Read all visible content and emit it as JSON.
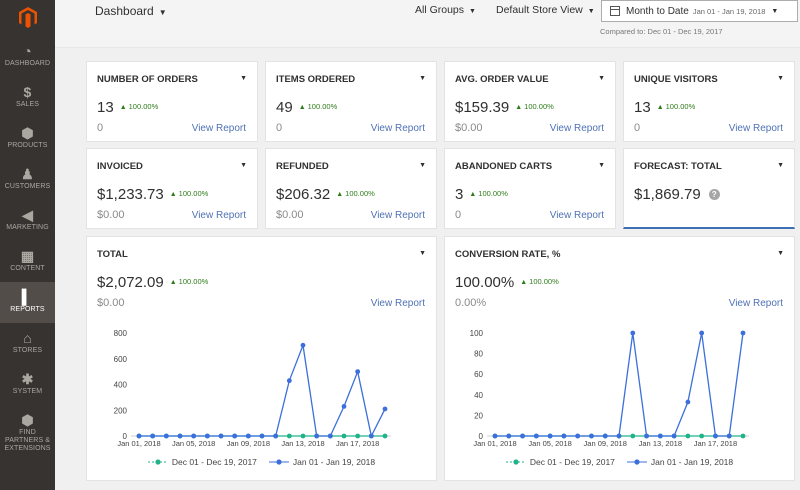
{
  "sidebar": {
    "items": [
      {
        "label": "DASHBOARD",
        "icon": "dashboard-icon",
        "glyph": "◔"
      },
      {
        "label": "SALES",
        "icon": "dollar-icon",
        "glyph": "$"
      },
      {
        "label": "PRODUCTS",
        "icon": "box-icon",
        "glyph": "⬢"
      },
      {
        "label": "CUSTOMERS",
        "icon": "person-icon",
        "glyph": "♟"
      },
      {
        "label": "MARKETING",
        "icon": "megaphone-icon",
        "glyph": "◀"
      },
      {
        "label": "CONTENT",
        "icon": "layout-icon",
        "glyph": "▦"
      },
      {
        "label": "REPORTS",
        "icon": "bar-chart-icon",
        "glyph": "▍"
      },
      {
        "label": "STORES",
        "icon": "store-icon",
        "glyph": "⌂"
      },
      {
        "label": "SYSTEM",
        "icon": "gear-icon",
        "glyph": "✱"
      },
      {
        "label": "FIND PARTNERS & EXTENSIONS",
        "icon": "cube-icon",
        "glyph": "⬢"
      }
    ]
  },
  "header": {
    "title": "Dashboard",
    "groups": "All Groups",
    "store_view": "Default Store View",
    "date_label": "Month to Date",
    "date_range": "Jan 01 - Jan 19, 2018",
    "compared": "Compared to: Dec 01 - Dec 19, 2017"
  },
  "cards": {
    "orders": {
      "title": "NUMBER OF ORDERS",
      "value": "13",
      "pct": "100.00%",
      "prev": "0",
      "link": "View Report"
    },
    "items": {
      "title": "ITEMS ORDERED",
      "value": "49",
      "pct": "100.00%",
      "prev": "0",
      "link": "View Report"
    },
    "aov": {
      "title": "AVG. ORDER VALUE",
      "value": "$159.39",
      "pct": "100.00%",
      "prev": "$0.00",
      "link": "View Report"
    },
    "visitors": {
      "title": "UNIQUE VISITORS",
      "value": "13",
      "pct": "100.00%",
      "prev": "0",
      "link": "View Report"
    },
    "invoiced": {
      "title": "INVOICED",
      "value": "$1,233.73",
      "pct": "100.00%",
      "prev": "$0.00",
      "link": "View Report"
    },
    "refunded": {
      "title": "REFUNDED",
      "value": "$206.32",
      "pct": "100.00%",
      "prev": "$0.00",
      "link": "View Report"
    },
    "abandoned": {
      "title": "ABANDONED CARTS",
      "value": "3",
      "pct": "100.00%",
      "prev": "0",
      "link": "View Report"
    },
    "forecast": {
      "title": "FORECAST: TOTAL",
      "value": "$1,869.79",
      "help": "?"
    },
    "total": {
      "title": "TOTAL",
      "value": "$2,072.09",
      "pct": "100.00%",
      "prev": "$0.00",
      "link": "View Report"
    },
    "conversion": {
      "title": "CONVERSION RATE, %",
      "value": "100.00%",
      "pct": "100.00%",
      "prev": "0.00%",
      "link": "View Report"
    }
  },
  "colors": {
    "current": "#3c6fdc",
    "previous": "#20b38a",
    "positive": "#2e7d1a",
    "link": "#4f72b6",
    "sidebar": "#373330",
    "accent": "#eb5202"
  },
  "chart_data": [
    {
      "type": "line",
      "x": [
        "Jan 01, 2018",
        "Jan 02",
        "Jan 03",
        "Jan 04",
        "Jan 05, 2018",
        "Jan 06",
        "Jan 07",
        "Jan 08",
        "Jan 09, 2018",
        "Jan 10",
        "Jan 11",
        "Jan 12",
        "Jan 13, 2018",
        "Jan 14",
        "Jan 15",
        "Jan 16",
        "Jan 17, 2018",
        "Jan 18",
        "Jan 19"
      ],
      "x_ticks": [
        "Jan 01, 2018",
        "Jan 05, 2018",
        "Jan 09, 2018",
        "Jan 13, 2018",
        "Jan 17, 2018"
      ],
      "y_ticks": [
        "0",
        "200",
        "400",
        "600",
        "800"
      ],
      "ylim": [
        0,
        800
      ],
      "series": [
        {
          "name": "Dec 01 - Dec 19, 2017",
          "values": [
            0,
            0,
            0,
            0,
            0,
            0,
            0,
            0,
            0,
            0,
            0,
            0,
            0,
            0,
            0,
            0,
            0,
            0,
            0
          ]
        },
        {
          "name": "Jan 01 - Jan 19, 2018",
          "values": [
            0,
            0,
            0,
            0,
            0,
            0,
            0,
            0,
            0,
            0,
            0,
            430,
            705,
            0,
            0,
            230,
            500,
            0,
            210
          ]
        }
      ]
    },
    {
      "type": "line",
      "x": [
        "Jan 01, 2018",
        "Jan 02",
        "Jan 03",
        "Jan 04",
        "Jan 05, 2018",
        "Jan 06",
        "Jan 07",
        "Jan 08",
        "Jan 09, 2018",
        "Jan 10",
        "Jan 11",
        "Jan 12",
        "Jan 13, 2018",
        "Jan 14",
        "Jan 15",
        "Jan 16",
        "Jan 17, 2018",
        "Jan 18",
        "Jan 19"
      ],
      "x_ticks": [
        "Jan 01, 2018",
        "Jan 05, 2018",
        "Jan 09, 2018",
        "Jan 13, 2018",
        "Jan 17, 2018"
      ],
      "y_ticks": [
        "0",
        "20",
        "40",
        "60",
        "80",
        "100"
      ],
      "ylim": [
        0,
        100
      ],
      "series": [
        {
          "name": "Dec 01 - Dec 19, 2017",
          "values": [
            0,
            0,
            0,
            0,
            0,
            0,
            0,
            0,
            0,
            0,
            0,
            0,
            0,
            0,
            0,
            0,
            0,
            0,
            0
          ]
        },
        {
          "name": "Jan 01 - Jan 19, 2018",
          "values": [
            0,
            0,
            0,
            0,
            0,
            0,
            0,
            0,
            0,
            0,
            100,
            0,
            0,
            0,
            33,
            100,
            0,
            0,
            100
          ]
        }
      ]
    }
  ]
}
